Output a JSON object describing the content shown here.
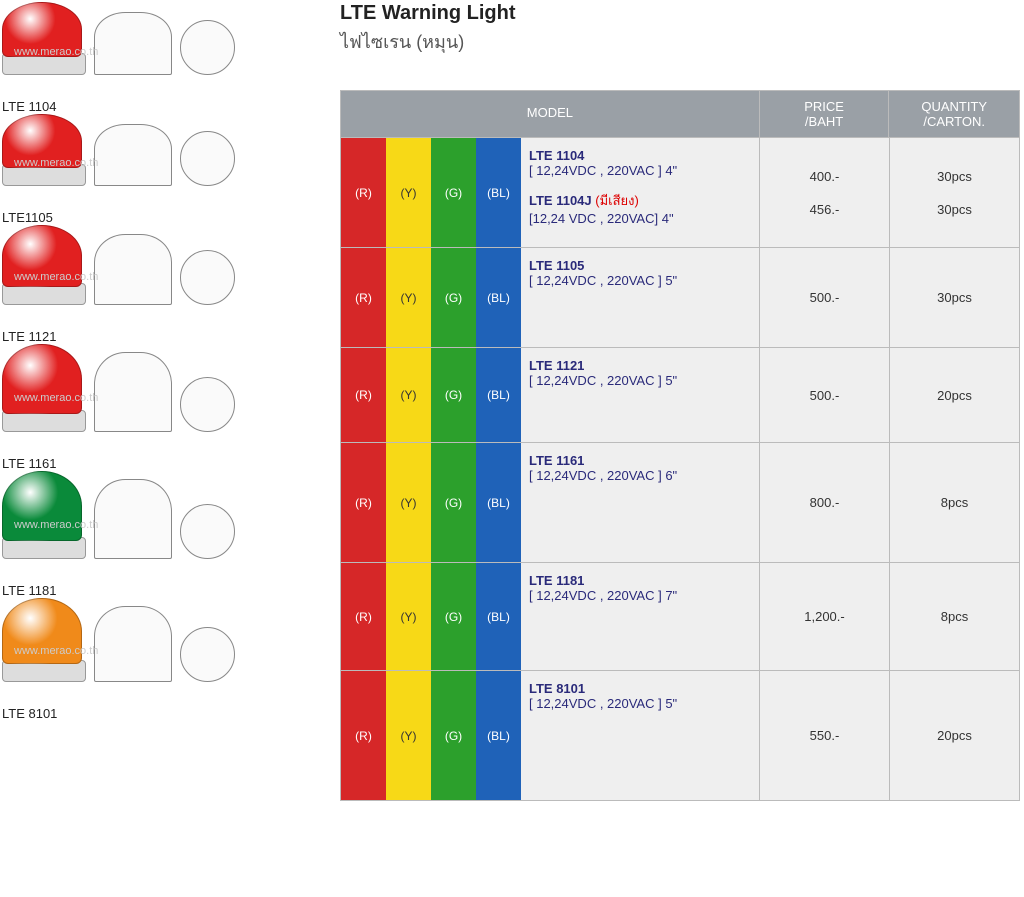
{
  "title": "LTE Warning Light",
  "subtitle": "ไฟไซเรน (หมุน)",
  "colors": {
    "red": {
      "bg": "#d62728",
      "label": "(R)"
    },
    "yellow": {
      "bg": "#f7d917",
      "label": "(Y)"
    },
    "green": {
      "bg": "#2ca02c",
      "label": "(G)"
    },
    "blue": {
      "bg": "#1f62b8",
      "label": "(BL)"
    }
  },
  "headers": {
    "model": "MODEL",
    "price": "PRICE\n/BAHT",
    "qty": "QUANTITY\n/CARTON."
  },
  "header_bg": "#9aa0a6",
  "products": [
    {
      "label": "LTE 1104",
      "dome_color": "#e12020",
      "h": 78
    },
    {
      "label": "LTE1105",
      "dome_color": "#e12020",
      "h": 78
    },
    {
      "label": "LTE 1121",
      "dome_color": "#e12020",
      "h": 88
    },
    {
      "label": "LTE 1161",
      "dome_color": "#e12020",
      "h": 100
    },
    {
      "label": "LTE 1181",
      "dome_color": "#0a8a3a",
      "h": 100
    },
    {
      "label": "LTE 8101",
      "dome_color": "#f08a1a",
      "h": 95
    }
  ],
  "rows": [
    {
      "height": 110,
      "lines": [
        {
          "name": "LTE 1104",
          "spec": "[ 12,24VDC , 220VAC ] 4\"",
          "price": "400.-",
          "qty": "30pcs"
        },
        {
          "name": "LTE 1104J",
          "note": "(มีเสียง)",
          "spec": "[12,24 VDC , 220VAC] 4\"",
          "price": "456.-",
          "qty": "30pcs"
        }
      ]
    },
    {
      "height": 100,
      "lines": [
        {
          "name": "LTE 1105",
          "spec": "[ 12,24VDC , 220VAC ] 5\"",
          "price": "500.-",
          "qty": "30pcs"
        }
      ]
    },
    {
      "height": 95,
      "lines": [
        {
          "name": "LTE 1121",
          "spec": "[ 12,24VDC , 220VAC ] 5\"",
          "price": "500.-",
          "qty": "20pcs"
        }
      ]
    },
    {
      "height": 120,
      "lines": [
        {
          "name": "LTE 1161",
          "spec": "[ 12,24VDC , 220VAC ] 6\"",
          "price": "800.-",
          "qty": "8pcs"
        }
      ]
    },
    {
      "height": 108,
      "lines": [
        {
          "name": "LTE 1181",
          "spec": "[ 12,24VDC , 220VAC ] 7\"",
          "price": "1,200.-",
          "qty": "8pcs"
        }
      ]
    },
    {
      "height": 130,
      "lines": [
        {
          "name": "LTE 8101",
          "spec": "[ 12,24VDC , 220VAC ] 5\"",
          "price": "550.-",
          "qty": "20pcs"
        }
      ]
    }
  ],
  "watermark": "www.merao.co.th"
}
